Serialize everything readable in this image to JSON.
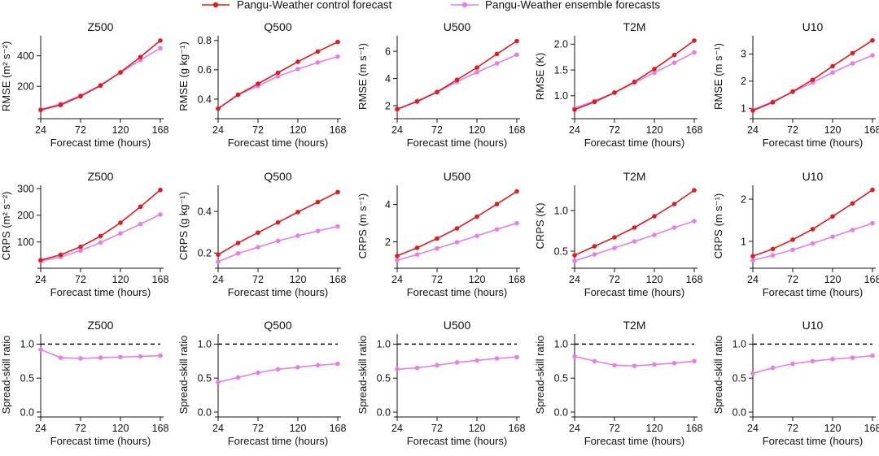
{
  "legend": {
    "entries": [
      {
        "label": "Pangu-Weather control forecast",
        "color": "#e41a1c"
      },
      {
        "label": "Pangu-Weather ensemble forecasts",
        "color": "#e87de8"
      }
    ]
  },
  "colors": {
    "control": "#e41a1c",
    "ensemble": "#e87de8",
    "axis": "#111111"
  },
  "chart_data": [
    {
      "type": "line",
      "row": 0,
      "col": 0,
      "title": "Z500",
      "xlabel": "Forecast time (hours)",
      "ylabel": "RMSE (m² s⁻²)",
      "x": [
        24,
        48,
        72,
        96,
        120,
        144,
        168
      ],
      "xticks": [
        24,
        72,
        120,
        168
      ],
      "xlim": [
        24,
        168
      ],
      "ylim": [
        20,
        510
      ],
      "yticks": [
        200,
        400
      ],
      "series": [
        {
          "name": "Pangu-Weather control forecast",
          "key": "control",
          "values": [
            45,
            78,
            135,
            205,
            292,
            392,
            500
          ]
        },
        {
          "name": "Pangu-Weather ensemble forecasts",
          "key": "ensemble",
          "values": [
            48,
            85,
            140,
            208,
            290,
            372,
            450
          ]
        }
      ]
    },
    {
      "type": "line",
      "row": 0,
      "col": 1,
      "title": "Q500",
      "xlabel": "Forecast time (hours)",
      "ylabel": "RMSE (g kg⁻¹)",
      "x": [
        24,
        48,
        72,
        96,
        120,
        144,
        168
      ],
      "xticks": [
        24,
        72,
        120,
        168
      ],
      "xlim": [
        24,
        168
      ],
      "ylim": [
        0.3,
        0.81
      ],
      "yticks": [
        0.4,
        0.6,
        0.8
      ],
      "series": [
        {
          "name": "Pangu-Weather control forecast",
          "key": "control",
          "values": [
            0.335,
            0.43,
            0.505,
            0.58,
            0.655,
            0.725,
            0.79
          ]
        },
        {
          "name": "Pangu-Weather ensemble forecasts",
          "key": "ensemble",
          "values": [
            0.335,
            0.43,
            0.49,
            0.555,
            0.605,
            0.65,
            0.69
          ]
        }
      ]
    },
    {
      "type": "line",
      "row": 0,
      "col": 2,
      "title": "U500",
      "xlabel": "Forecast time (hours)",
      "ylabel": "RMSE (m s⁻¹)",
      "x": [
        24,
        48,
        72,
        96,
        120,
        144,
        168
      ],
      "xticks": [
        24,
        72,
        120,
        168
      ],
      "xlim": [
        24,
        168
      ],
      "ylim": [
        1.4,
        6.9
      ],
      "yticks": [
        2,
        4,
        6
      ],
      "series": [
        {
          "name": "Pangu-Weather control forecast",
          "key": "control",
          "values": [
            1.75,
            2.3,
            3.0,
            3.9,
            4.8,
            5.8,
            6.75
          ]
        },
        {
          "name": "Pangu-Weather ensemble forecasts",
          "key": "ensemble",
          "values": [
            1.7,
            2.35,
            3.0,
            3.75,
            4.45,
            5.1,
            5.75
          ]
        }
      ]
    },
    {
      "type": "line",
      "row": 0,
      "col": 3,
      "title": "T2M",
      "xlabel": "Forecast time (hours)",
      "ylabel": "RMSE (K)",
      "x": [
        24,
        48,
        72,
        96,
        120,
        144,
        168
      ],
      "xticks": [
        24,
        72,
        120,
        168
      ],
      "xlim": [
        24,
        168
      ],
      "ylim": [
        0.65,
        2.1
      ],
      "yticks": [
        1.0,
        1.5,
        2.0
      ],
      "yformat": 1,
      "series": [
        {
          "name": "Pangu-Weather control forecast",
          "key": "control",
          "values": [
            0.73,
            0.88,
            1.06,
            1.27,
            1.52,
            1.79,
            2.07
          ]
        },
        {
          "name": "Pangu-Weather ensemble forecasts",
          "key": "ensemble",
          "values": [
            0.76,
            0.9,
            1.06,
            1.25,
            1.45,
            1.64,
            1.84
          ]
        }
      ]
    },
    {
      "type": "line",
      "row": 0,
      "col": 4,
      "title": "U10",
      "xlabel": "Forecast time (hours)",
      "ylabel": "RMSE (m s⁻¹)",
      "x": [
        24,
        48,
        72,
        96,
        120,
        144,
        168
      ],
      "xticks": [
        24,
        72,
        120,
        168
      ],
      "xlim": [
        24,
        168
      ],
      "ylim": [
        0.8,
        3.55
      ],
      "yticks": [
        1,
        2,
        3
      ],
      "series": [
        {
          "name": "Pangu-Weather control forecast",
          "key": "control",
          "values": [
            0.92,
            1.22,
            1.62,
            2.05,
            2.55,
            3.03,
            3.5
          ]
        },
        {
          "name": "Pangu-Weather ensemble forecasts",
          "key": "ensemble",
          "values": [
            0.95,
            1.25,
            1.6,
            1.95,
            2.32,
            2.65,
            2.95
          ]
        }
      ]
    },
    {
      "type": "line",
      "row": 1,
      "col": 0,
      "title": "Z500",
      "xlabel": "Forecast time (hours)",
      "ylabel": "CRPS (m² s⁻²)",
      "x": [
        24,
        48,
        72,
        96,
        120,
        144,
        168
      ],
      "xticks": [
        24,
        72,
        120,
        168
      ],
      "xlim": [
        24,
        168
      ],
      "ylim": [
        20,
        300
      ],
      "yticks": [
        100,
        200,
        300
      ],
      "series": [
        {
          "name": "Pangu-Weather control forecast",
          "key": "control",
          "values": [
            32,
            52,
            82,
            122,
            172,
            232,
            295
          ]
        },
        {
          "name": "Pangu-Weather ensemble forecasts",
          "key": "ensemble",
          "values": [
            28,
            44,
            68,
            98,
            132,
            167,
            203
          ]
        }
      ]
    },
    {
      "type": "line",
      "row": 1,
      "col": 1,
      "title": "Q500",
      "xlabel": "Forecast time (hours)",
      "ylabel": "CRPS (g kg⁻¹)",
      "x": [
        24,
        48,
        72,
        96,
        120,
        144,
        168
      ],
      "xticks": [
        24,
        72,
        120,
        168
      ],
      "xlim": [
        24,
        168
      ],
      "ylim": [
        0.15,
        0.51
      ],
      "yticks": [
        0.2,
        0.4
      ],
      "series": [
        {
          "name": "Pangu-Weather control forecast",
          "key": "control",
          "values": [
            0.192,
            0.248,
            0.298,
            0.347,
            0.397,
            0.445,
            0.493
          ]
        },
        {
          "name": "Pangu-Weather ensemble forecasts",
          "key": "ensemble",
          "values": [
            0.158,
            0.198,
            0.228,
            0.258,
            0.283,
            0.306,
            0.328
          ]
        }
      ]
    },
    {
      "type": "line",
      "row": 1,
      "col": 2,
      "title": "U500",
      "xlabel": "Forecast time (hours)",
      "ylabel": "CRPS (m s⁻¹)",
      "x": [
        24,
        48,
        72,
        96,
        120,
        144,
        168
      ],
      "xticks": [
        24,
        72,
        120,
        168
      ],
      "xlim": [
        24,
        168
      ],
      "ylim": [
        0.85,
        4.85
      ],
      "yticks": [
        2,
        4
      ],
      "series": [
        {
          "name": "Pangu-Weather control forecast",
          "key": "control",
          "values": [
            1.25,
            1.68,
            2.18,
            2.72,
            3.35,
            4.02,
            4.7
          ]
        },
        {
          "name": "Pangu-Weather ensemble forecasts",
          "key": "ensemble",
          "values": [
            1.02,
            1.32,
            1.65,
            1.98,
            2.32,
            2.67,
            3.0
          ]
        }
      ]
    },
    {
      "type": "line",
      "row": 1,
      "col": 3,
      "title": "T2M",
      "xlabel": "Forecast time (hours)",
      "ylabel": "CRPS (K)",
      "x": [
        24,
        48,
        72,
        96,
        120,
        144,
        168
      ],
      "xticks": [
        24,
        72,
        120,
        168
      ],
      "xlim": [
        24,
        168
      ],
      "ylim": [
        0.35,
        1.27
      ],
      "yticks": [
        0.5,
        1.0
      ],
      "yformat": 1,
      "series": [
        {
          "name": "Pangu-Weather control forecast",
          "key": "control",
          "values": [
            0.45,
            0.56,
            0.67,
            0.79,
            0.93,
            1.08,
            1.25
          ]
        },
        {
          "name": "Pangu-Weather ensemble forecasts",
          "key": "ensemble",
          "values": [
            0.38,
            0.46,
            0.54,
            0.62,
            0.7,
            0.79,
            0.87
          ]
        }
      ]
    },
    {
      "type": "line",
      "row": 1,
      "col": 4,
      "title": "U10",
      "xlabel": "Forecast time (hours)",
      "ylabel": "CRPS (m s⁻¹)",
      "x": [
        24,
        48,
        72,
        96,
        120,
        144,
        168
      ],
      "xticks": [
        24,
        72,
        120,
        168
      ],
      "xlim": [
        24,
        168
      ],
      "ylim": [
        0.48,
        2.25
      ],
      "yticks": [
        1,
        2
      ],
      "series": [
        {
          "name": "Pangu-Weather control forecast",
          "key": "control",
          "values": [
            0.65,
            0.82,
            1.04,
            1.29,
            1.59,
            1.9,
            2.22
          ]
        },
        {
          "name": "Pangu-Weather ensemble forecasts",
          "key": "ensemble",
          "values": [
            0.55,
            0.67,
            0.8,
            0.95,
            1.11,
            1.27,
            1.43
          ]
        }
      ]
    },
    {
      "type": "line",
      "row": 2,
      "col": 0,
      "title": "Z500",
      "xlabel": "Forecast time (hours)",
      "ylabel": "Spread-skill ratio",
      "x": [
        24,
        48,
        72,
        96,
        120,
        144,
        168
      ],
      "xticks": [
        24,
        72,
        120,
        168
      ],
      "xlim": [
        24,
        168
      ],
      "ylim": [
        0,
        1.1
      ],
      "yticks": [
        0,
        0.5,
        1.0
      ],
      "yformat": 1,
      "reference_line": 1.0,
      "series": [
        {
          "name": "Pangu-Weather ensemble forecasts",
          "key": "ensemble",
          "values": [
            0.92,
            0.8,
            0.79,
            0.8,
            0.81,
            0.82,
            0.83
          ]
        }
      ]
    },
    {
      "type": "line",
      "row": 2,
      "col": 1,
      "title": "Q500",
      "xlabel": "Forecast time (hours)",
      "ylabel": "Spread-skill ratio",
      "x": [
        24,
        48,
        72,
        96,
        120,
        144,
        168
      ],
      "xticks": [
        24,
        72,
        120,
        168
      ],
      "xlim": [
        24,
        168
      ],
      "ylim": [
        0,
        1.1
      ],
      "yticks": [
        0,
        0.5,
        1.0
      ],
      "yformat": 1,
      "reference_line": 1.0,
      "series": [
        {
          "name": "Pangu-Weather ensemble forecasts",
          "key": "ensemble",
          "values": [
            0.44,
            0.51,
            0.58,
            0.63,
            0.66,
            0.69,
            0.71
          ]
        }
      ]
    },
    {
      "type": "line",
      "row": 2,
      "col": 2,
      "title": "U500",
      "xlabel": "Forecast time (hours)",
      "ylabel": "Spread-skill ratio",
      "x": [
        24,
        48,
        72,
        96,
        120,
        144,
        168
      ],
      "xticks": [
        24,
        72,
        120,
        168
      ],
      "xlim": [
        24,
        168
      ],
      "ylim": [
        0,
        1.1
      ],
      "yticks": [
        0,
        0.5,
        1.0
      ],
      "yformat": 1,
      "reference_line": 1.0,
      "series": [
        {
          "name": "Pangu-Weather ensemble forecasts",
          "key": "ensemble",
          "values": [
            0.63,
            0.65,
            0.69,
            0.73,
            0.76,
            0.79,
            0.81
          ]
        }
      ]
    },
    {
      "type": "line",
      "row": 2,
      "col": 3,
      "title": "T2M",
      "xlabel": "Forecast time (hours)",
      "ylabel": "Spread-skill ratio",
      "x": [
        24,
        48,
        72,
        96,
        120,
        144,
        168
      ],
      "xticks": [
        24,
        72,
        120,
        168
      ],
      "xlim": [
        24,
        168
      ],
      "ylim": [
        0,
        1.1
      ],
      "yticks": [
        0,
        0.5,
        1.0
      ],
      "yformat": 1,
      "reference_line": 1.0,
      "series": [
        {
          "name": "Pangu-Weather ensemble forecasts",
          "key": "ensemble",
          "values": [
            0.82,
            0.75,
            0.69,
            0.68,
            0.7,
            0.72,
            0.75
          ]
        }
      ]
    },
    {
      "type": "line",
      "row": 2,
      "col": 4,
      "title": "U10",
      "xlabel": "Forecast time (hours)",
      "ylabel": "Spread-skill ratio",
      "x": [
        24,
        48,
        72,
        96,
        120,
        144,
        168
      ],
      "xticks": [
        24,
        72,
        120,
        168
      ],
      "xlim": [
        24,
        168
      ],
      "ylim": [
        0,
        1.1
      ],
      "yticks": [
        0,
        0.5,
        1.0
      ],
      "yformat": 1,
      "reference_line": 1.0,
      "series": [
        {
          "name": "Pangu-Weather ensemble forecasts",
          "key": "ensemble",
          "values": [
            0.57,
            0.65,
            0.71,
            0.75,
            0.78,
            0.8,
            0.83
          ]
        }
      ]
    }
  ]
}
